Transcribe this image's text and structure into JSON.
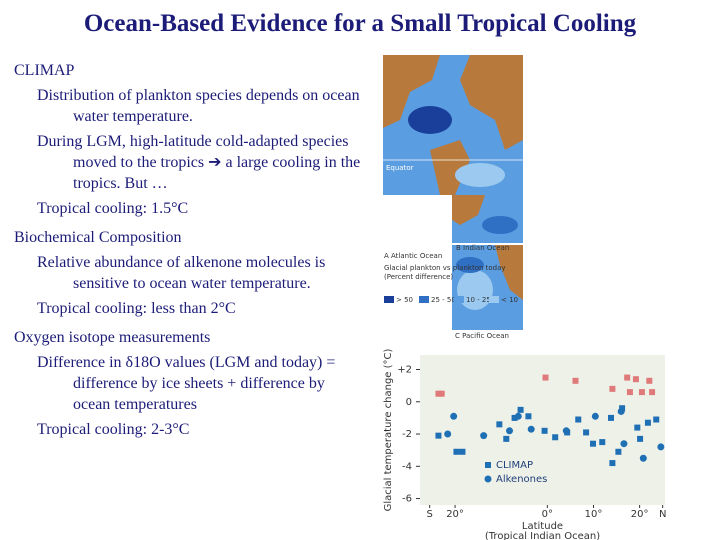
{
  "header": {
    "title": "Ocean-Based Evidence for a Small Tropical Cooling"
  },
  "sections": [
    {
      "heading": "CLIMAP",
      "items": [
        "Distribution of plankton species depends on ocean water temperature.",
        "During LGM, high-latitude cold-adapted species moved to the tropics ➔ a large cooling in the tropics. But …",
        "Tropical cooling: 1.5°C"
      ]
    },
    {
      "heading": "Biochemical Composition",
      "items": [
        "Relative abundance of alkenone molecules is sensitive to ocean water temperature.",
        "Tropical cooling: less than 2°C"
      ]
    },
    {
      "heading": "Oxygen isotope measurements",
      "items": [
        "Difference in δ18O values (LGM and today) = difference by ice sheets + difference by ocean temperatures",
        "Tropical cooling: 2-3°C"
      ]
    }
  ],
  "figure": {
    "equator": "Equator",
    "panel_b": "B  Indian Ocean",
    "panel_a": "A  Atlantic Ocean",
    "panel_c": "C  Pacific Ocean",
    "legend_title": "Glacial plankton vs plankton today",
    "legend_subtitle": "(Percent difference)",
    "legend_items": [
      {
        "label": "> 50",
        "color": "#1a3f9a"
      },
      {
        "label": "25 - 50",
        "color": "#2f6fc4"
      },
      {
        "label": "10 - 25",
        "color": "#5a9de0"
      },
      {
        "label": "< 10",
        "color": "#9cc9f0"
      }
    ]
  },
  "chart_data": {
    "type": "scatter",
    "ylabel": "Glacial temperature change (°C)",
    "xlabel": "Latitude",
    "xlabel_note": "(Tropical Indian Ocean)",
    "xlim": [
      -27.6,
      25.5
    ],
    "ylim": [
      -6.4,
      2.9
    ],
    "xticks": [
      {
        "value": -25.5,
        "label": "S"
      },
      {
        "value": -20,
        "label": "20°"
      },
      {
        "value": 0,
        "label": "0°"
      },
      {
        "value": 10,
        "label": "10°"
      },
      {
        "value": 20,
        "label": "20°"
      },
      {
        "value": 25,
        "label": "N"
      }
    ],
    "yticks": [
      {
        "value": 2,
        "label": "+2"
      },
      0,
      -2,
      -4,
      -6
    ],
    "series": [
      {
        "color": "#e07a7a",
        "marker": "square",
        "x": [
          -23.6,
          -22.9,
          -0.4,
          6.1,
          14.1,
          17.3,
          19.2,
          22.1,
          20.5,
          22.7,
          17.9
        ],
        "values": [
          0.5,
          0.5,
          1.5,
          1.3,
          0.8,
          1.5,
          1.4,
          1.3,
          0.6,
          0.6,
          0.6
        ]
      },
      {
        "name": "CLIMAP",
        "color": "#1f6fb5",
        "marker": "square",
        "x": [
          -23.6,
          -19.7,
          -18.4,
          -10.4,
          -8.9,
          -7.1,
          -4.1,
          -5.8,
          -0.6,
          1.7,
          4.3,
          6.7,
          8.4,
          9.9,
          11.9,
          13.8,
          16.2,
          19.5,
          21.8,
          23.6,
          14.1,
          15.4,
          20.1
        ],
        "values": [
          -2.1,
          -3.1,
          -3.1,
          -1.4,
          -2.3,
          -1.0,
          -0.9,
          -0.5,
          -1.8,
          -2.2,
          -1.9,
          -1.1,
          -1.9,
          -2.6,
          -2.5,
          -1.0,
          -0.4,
          -1.6,
          -1.3,
          -1.1,
          -3.8,
          -3.1,
          -2.3
        ]
      },
      {
        "name": "Alkenones",
        "color": "#1f6fb5",
        "marker": "circle",
        "x": [
          -20.3,
          -21.6,
          -13.8,
          -8.2,
          -6.3,
          -3.5,
          4.1,
          10.4,
          16.0,
          16.6,
          20.8,
          24.6
        ],
        "values": [
          -0.9,
          -2.0,
          -2.1,
          -1.8,
          -0.9,
          -1.7,
          -1.8,
          -0.9,
          -0.6,
          -2.6,
          -3.5,
          -2.8
        ]
      }
    ]
  }
}
